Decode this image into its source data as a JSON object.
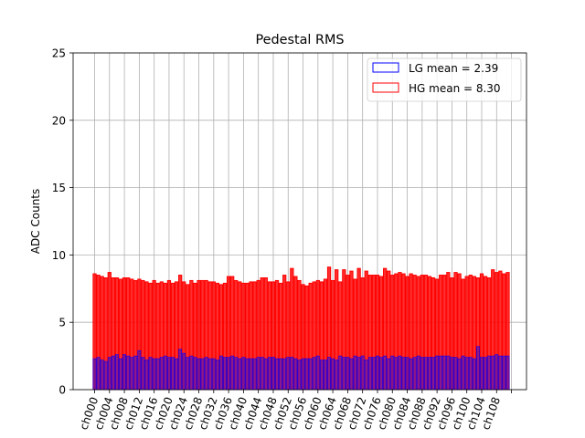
{
  "chart_data": {
    "type": "bar",
    "title": "Pedestal RMS",
    "xlabel": "",
    "ylabel": "ADC Counts",
    "ylim": [
      0,
      25
    ],
    "yticks": [
      0,
      5,
      10,
      15,
      20,
      25
    ],
    "grid": true,
    "legend_position": "top-right",
    "num_channels": 112,
    "tick_labels": [
      "ch000",
      "ch004",
      "ch008",
      "ch012",
      "ch016",
      "ch020",
      "ch024",
      "ch028",
      "ch032",
      "ch036",
      "ch040",
      "ch044",
      "ch048",
      "ch052",
      "ch056",
      "ch060",
      "ch064",
      "ch068",
      "ch072",
      "ch076",
      "ch080",
      "ch084",
      "ch088",
      "ch092",
      "ch096",
      "ch100",
      "ch104",
      "ch108"
    ],
    "series": [
      {
        "name": "LG mean = 2.39",
        "edge_color": "#0000ff",
        "fill_color": "#0000ff",
        "values": [
          2.3,
          2.4,
          2.2,
          2.1,
          2.4,
          2.5,
          2.6,
          2.3,
          2.6,
          2.5,
          2.4,
          2.5,
          2.9,
          2.4,
          2.2,
          2.4,
          2.3,
          2.3,
          2.4,
          2.5,
          2.4,
          2.4,
          2.3,
          3.0,
          2.7,
          2.4,
          2.5,
          2.4,
          2.3,
          2.3,
          2.4,
          2.3,
          2.3,
          2.2,
          2.5,
          2.4,
          2.4,
          2.5,
          2.4,
          2.3,
          2.4,
          2.3,
          2.3,
          2.3,
          2.4,
          2.4,
          2.3,
          2.4,
          2.4,
          2.3,
          2.3,
          2.3,
          2.4,
          2.4,
          2.3,
          2.2,
          2.3,
          2.3,
          2.3,
          2.4,
          2.5,
          2.2,
          2.2,
          2.4,
          2.3,
          2.2,
          2.5,
          2.4,
          2.4,
          2.3,
          2.5,
          2.4,
          2.5,
          2.2,
          2.4,
          2.4,
          2.5,
          2.4,
          2.5,
          2.3,
          2.5,
          2.4,
          2.5,
          2.4,
          2.4,
          2.3,
          2.4,
          2.5,
          2.4,
          2.4,
          2.4,
          2.4,
          2.5,
          2.5,
          2.5,
          2.5,
          2.4,
          2.4,
          2.3,
          2.5,
          2.4,
          2.4,
          2.3,
          3.2,
          2.4,
          2.4,
          2.5,
          2.5,
          2.6,
          2.5,
          2.5,
          2.5
        ]
      },
      {
        "name": "HG mean = 8.30",
        "edge_color": "#ff0000",
        "fill_color": "#ff0000",
        "values": [
          8.6,
          8.5,
          8.4,
          8.3,
          8.7,
          8.3,
          8.3,
          8.2,
          8.3,
          8.3,
          8.2,
          8.1,
          8.2,
          8.1,
          8.0,
          7.9,
          8.1,
          7.9,
          8.0,
          7.9,
          8.1,
          7.9,
          8.0,
          8.5,
          8.0,
          7.8,
          8.1,
          7.9,
          8.1,
          8.1,
          8.1,
          8.0,
          8.0,
          7.9,
          7.8,
          7.9,
          8.4,
          8.4,
          8.1,
          8.0,
          7.9,
          7.9,
          8.0,
          8.0,
          8.1,
          8.3,
          8.3,
          8.0,
          8.0,
          8.1,
          7.9,
          8.5,
          8.0,
          9.0,
          8.4,
          8.1,
          7.8,
          7.7,
          7.9,
          8.0,
          8.1,
          8.0,
          8.2,
          9.1,
          8.1,
          8.9,
          8.0,
          8.9,
          8.5,
          8.8,
          8.2,
          9.0,
          8.3,
          8.8,
          8.5,
          8.5,
          8.5,
          8.4,
          9.0,
          8.8,
          8.5,
          8.6,
          8.7,
          8.6,
          8.4,
          8.6,
          8.5,
          8.4,
          8.5,
          8.5,
          8.4,
          8.3,
          8.2,
          8.5,
          8.5,
          8.7,
          8.3,
          8.7,
          8.6,
          8.2,
          8.4,
          8.5,
          8.4,
          8.3,
          8.6,
          8.4,
          8.3,
          8.9,
          8.7,
          8.8,
          8.6,
          8.7
        ]
      }
    ]
  }
}
